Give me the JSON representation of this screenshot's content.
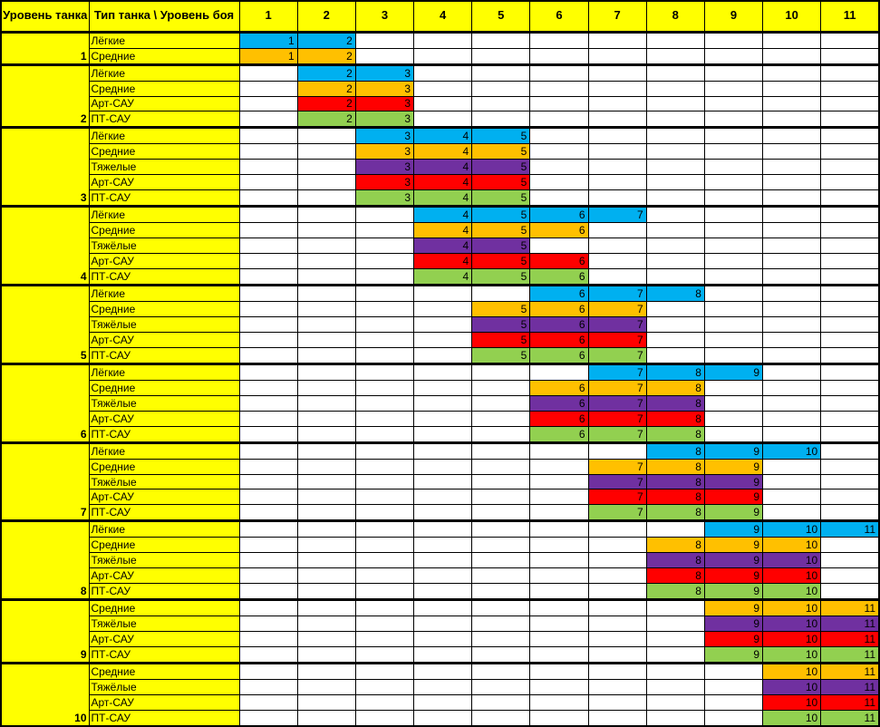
{
  "header": {
    "tier_col_label": "Уровень танка",
    "type_col_label": "Тип  танка \\ Уровень боя",
    "battle_levels": [
      1,
      2,
      3,
      4,
      5,
      6,
      7,
      8,
      9,
      10,
      11
    ]
  },
  "colors": {
    "header_bg": "#FFFF00",
    "grid": "#000000",
    "empty_cell": "#FFFFFF",
    "type_colors": {
      "light": "#00B0F0",
      "medium": "#FFC000",
      "heavy": "#7030A0",
      "spg": "#FF0000",
      "td": "#92D050"
    }
  },
  "chart_data": {
    "type": "table",
    "columns": [
      1,
      2,
      3,
      4,
      5,
      6,
      7,
      8,
      9,
      10,
      11
    ],
    "corner_label": "Тип  танка \\ Уровень боя",
    "tier_axis_label": "Уровень танка",
    "tiers": [
      {
        "tier": 1,
        "rows": [
          {
            "type": "Лёгкие",
            "class_key": "light",
            "levels": [
              1,
              2
            ]
          },
          {
            "type": "Средние",
            "class_key": "medium",
            "levels": [
              1,
              2
            ]
          }
        ]
      },
      {
        "tier": 2,
        "rows": [
          {
            "type": "Лёгкие",
            "class_key": "light",
            "levels": [
              2,
              3
            ]
          },
          {
            "type": "Средние",
            "class_key": "medium",
            "levels": [
              2,
              3
            ]
          },
          {
            "type": "Арт-САУ",
            "class_key": "spg",
            "levels": [
              2,
              3
            ]
          },
          {
            "type": "ПТ-САУ",
            "class_key": "td",
            "levels": [
              2,
              3
            ]
          }
        ]
      },
      {
        "tier": 3,
        "rows": [
          {
            "type": "Лёгкие",
            "class_key": "light",
            "levels": [
              3,
              4,
              5
            ]
          },
          {
            "type": "Средние",
            "class_key": "medium",
            "levels": [
              3,
              4,
              5
            ]
          },
          {
            "type": "Тяжелые",
            "class_key": "heavy",
            "levels": [
              3,
              4,
              5
            ]
          },
          {
            "type": "Арт-САУ",
            "class_key": "spg",
            "levels": [
              3,
              4,
              5
            ]
          },
          {
            "type": "ПТ-САУ",
            "class_key": "td",
            "levels": [
              3,
              4,
              5
            ]
          }
        ]
      },
      {
        "tier": 4,
        "rows": [
          {
            "type": "Лёгкие",
            "class_key": "light",
            "levels": [
              4,
              5,
              6,
              7
            ]
          },
          {
            "type": "Средние",
            "class_key": "medium",
            "levels": [
              4,
              5,
              6
            ]
          },
          {
            "type": "Тяжёлые",
            "class_key": "heavy",
            "levels": [
              4,
              5
            ]
          },
          {
            "type": "Арт-САУ",
            "class_key": "spg",
            "levels": [
              4,
              5,
              6
            ]
          },
          {
            "type": "ПТ-САУ",
            "class_key": "td",
            "levels": [
              4,
              5,
              6
            ]
          }
        ]
      },
      {
        "tier": 5,
        "rows": [
          {
            "type": "Лёгкие",
            "class_key": "light",
            "levels": [
              6,
              7,
              8
            ]
          },
          {
            "type": "Средние",
            "class_key": "medium",
            "levels": [
              5,
              6,
              7
            ]
          },
          {
            "type": "Тяжёлые",
            "class_key": "heavy",
            "levels": [
              5,
              6,
              7
            ]
          },
          {
            "type": "Арт-САУ",
            "class_key": "spg",
            "levels": [
              5,
              6,
              7
            ]
          },
          {
            "type": "ПТ-САУ",
            "class_key": "td",
            "levels": [
              5,
              6,
              7
            ]
          }
        ]
      },
      {
        "tier": 6,
        "rows": [
          {
            "type": "Лёгкие",
            "class_key": "light",
            "levels": [
              7,
              8,
              9
            ]
          },
          {
            "type": "Средние",
            "class_key": "medium",
            "levels": [
              6,
              7,
              8
            ]
          },
          {
            "type": "Тяжёлые",
            "class_key": "heavy",
            "levels": [
              6,
              7,
              8
            ]
          },
          {
            "type": "Арт-САУ",
            "class_key": "spg",
            "levels": [
              6,
              7,
              8
            ]
          },
          {
            "type": "ПТ-САУ",
            "class_key": "td",
            "levels": [
              6,
              7,
              8
            ]
          }
        ]
      },
      {
        "tier": 7,
        "rows": [
          {
            "type": "Лёгкие",
            "class_key": "light",
            "levels": [
              8,
              9,
              10
            ]
          },
          {
            "type": "Средние",
            "class_key": "medium",
            "levels": [
              7,
              8,
              9
            ]
          },
          {
            "type": "Тяжёлые",
            "class_key": "heavy",
            "levels": [
              7,
              8,
              9
            ]
          },
          {
            "type": "Арт-САУ",
            "class_key": "spg",
            "levels": [
              7,
              8,
              9
            ]
          },
          {
            "type": "ПТ-САУ",
            "class_key": "td",
            "levels": [
              7,
              8,
              9
            ]
          }
        ]
      },
      {
        "tier": 8,
        "rows": [
          {
            "type": "Лёгкие",
            "class_key": "light",
            "levels": [
              9,
              10,
              11
            ]
          },
          {
            "type": "Средние",
            "class_key": "medium",
            "levels": [
              8,
              9,
              10
            ]
          },
          {
            "type": "Тяжёлые",
            "class_key": "heavy",
            "levels": [
              8,
              9,
              10
            ]
          },
          {
            "type": "Арт-САУ",
            "class_key": "spg",
            "levels": [
              8,
              9,
              10
            ]
          },
          {
            "type": "ПТ-САУ",
            "class_key": "td",
            "levels": [
              8,
              9,
              10
            ]
          }
        ]
      },
      {
        "tier": 9,
        "rows": [
          {
            "type": "Средние",
            "class_key": "medium",
            "levels": [
              9,
              10,
              11
            ]
          },
          {
            "type": "Тяжёлые",
            "class_key": "heavy",
            "levels": [
              9,
              10,
              11
            ]
          },
          {
            "type": "Арт-САУ",
            "class_key": "spg",
            "levels": [
              9,
              10,
              11
            ]
          },
          {
            "type": "ПТ-САУ",
            "class_key": "td",
            "levels": [
              9,
              10,
              11
            ]
          }
        ]
      },
      {
        "tier": 10,
        "rows": [
          {
            "type": "Средние",
            "class_key": "medium",
            "levels": [
              10,
              11
            ]
          },
          {
            "type": "Тяжёлые",
            "class_key": "heavy",
            "levels": [
              10,
              11
            ]
          },
          {
            "type": "Арт-САУ",
            "class_key": "spg",
            "levels": [
              10,
              11
            ]
          },
          {
            "type": "ПТ-САУ",
            "class_key": "td",
            "levels": [
              10,
              11
            ]
          }
        ]
      }
    ]
  }
}
